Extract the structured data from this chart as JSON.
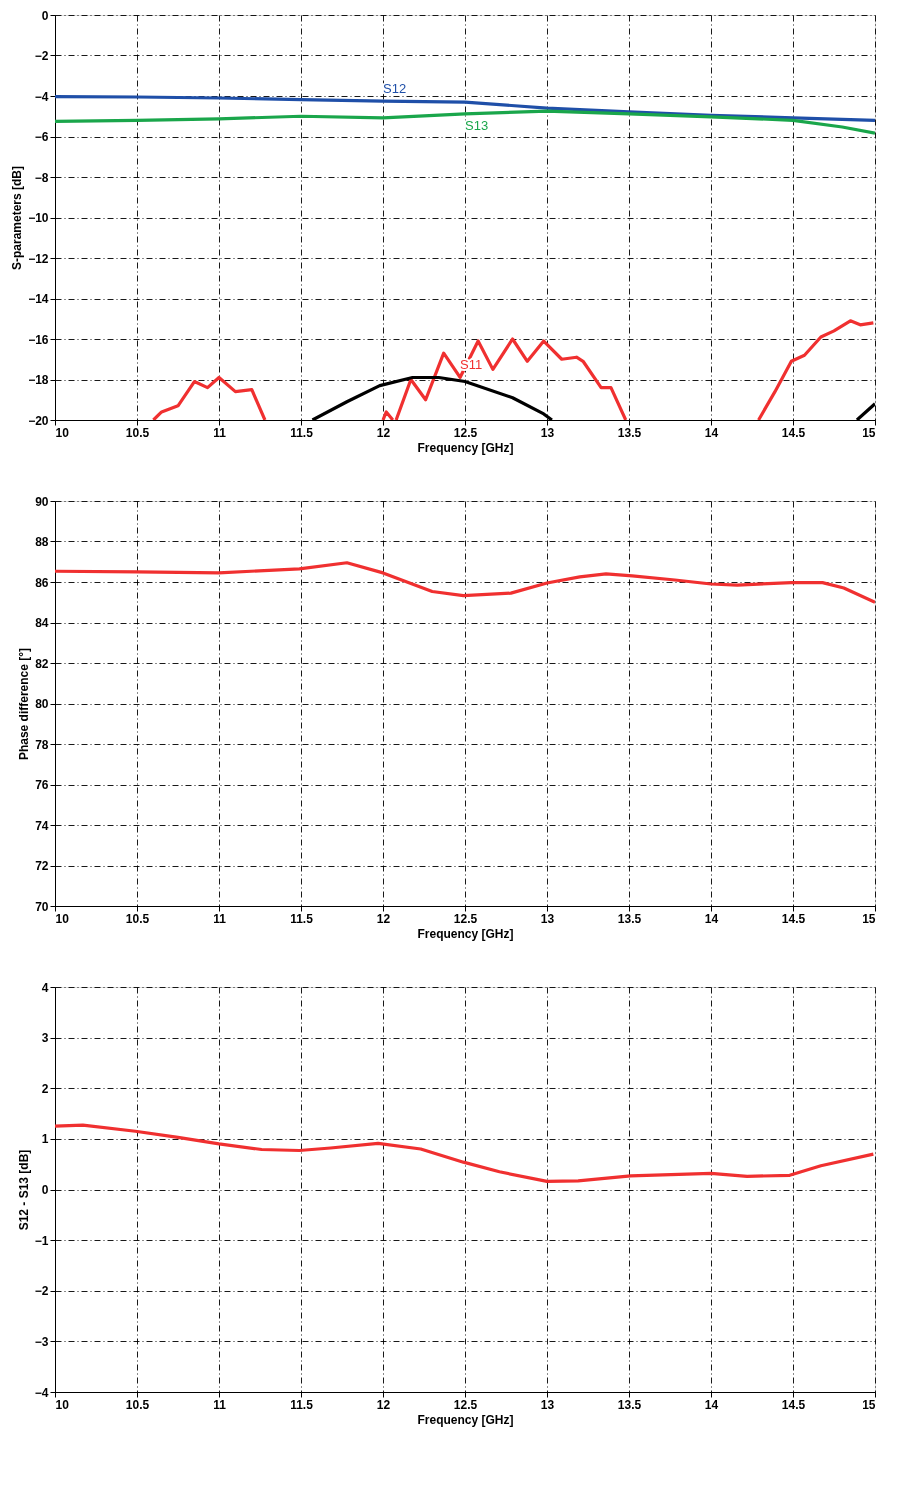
{
  "chart_data": [
    {
      "type": "line",
      "xlabel": "Frequency [GHz]",
      "ylabel": "S-parameters [dB]",
      "xlim": [
        10,
        15
      ],
      "ylim": [
        -20,
        0
      ],
      "xticks": [
        10,
        10.5,
        11,
        11.5,
        12,
        12.5,
        13,
        13.5,
        14,
        14.5,
        15
      ],
      "yticks": [
        -20,
        -18,
        -16,
        -14,
        -12,
        -10,
        -8,
        -6,
        -4,
        -2,
        0
      ],
      "grid": true,
      "legend": false,
      "marker": "none",
      "line_style": "solid",
      "series": [
        {
          "name": "S12",
          "color": "#1f4fa8",
          "x": [
            10,
            10.5,
            11,
            11.5,
            12,
            12.5,
            13,
            13.5,
            14,
            14.5,
            15
          ],
          "values": [
            -4.03,
            -4.05,
            -4.1,
            -4.18,
            -4.25,
            -4.3,
            -4.6,
            -4.78,
            -4.95,
            -5.08,
            -5.2
          ]
        },
        {
          "name": "S13",
          "color": "#1aa64b",
          "x": [
            10,
            10.5,
            11,
            11.5,
            12,
            12.5,
            13,
            13.5,
            14,
            14.5,
            14.8,
            15
          ],
          "values": [
            -5.25,
            -5.2,
            -5.13,
            -5.0,
            -5.08,
            -4.88,
            -4.75,
            -4.88,
            -5.03,
            -5.2,
            -5.53,
            -5.83
          ]
        },
        {
          "name": "S11",
          "color": "#f03030",
          "x": [
            10.6,
            10.65,
            10.75,
            10.85,
            10.93,
            11.0,
            11.1,
            11.2,
            11.28,
            11.5,
            12.0,
            12.02,
            12.06,
            12.07,
            12.08,
            12.17,
            12.26,
            12.37,
            12.47,
            12.58,
            12.67,
            12.79,
            12.88,
            12.98,
            13.09,
            13.18,
            13.22,
            13.33,
            13.39,
            13.48,
            14.0,
            14.29,
            14.39,
            14.49,
            14.57,
            14.67,
            14.75,
            14.85,
            14.91,
            14.99
          ],
          "values": [
            -20,
            -19.6,
            -19.3,
            -18.1,
            -18.4,
            -17.9,
            -18.6,
            -18.5,
            -20,
            null,
            -20,
            -19.6,
            -20,
            null,
            -20,
            -18.0,
            -19.0,
            -16.7,
            -17.9,
            -16.1,
            -17.5,
            -16.0,
            -17.1,
            -16.1,
            -17.0,
            -16.9,
            -17.1,
            -18.4,
            -18.4,
            -20,
            null,
            -20,
            -18.6,
            -17.1,
            -16.8,
            -15.9,
            -15.6,
            -15.1,
            -15.3,
            -15.2
          ]
        },
        {
          "color": "#000000",
          "x": [
            11.57,
            11.78,
            11.98,
            12.18,
            12.34,
            12.5,
            12.79,
            12.98,
            13.03,
            14.0,
            14.89,
            15.0
          ],
          "values": [
            -20,
            -19.1,
            -18.3,
            -17.9,
            -17.9,
            -18.1,
            -18.9,
            -19.7,
            -20,
            null,
            -20,
            -19.2
          ]
        }
      ]
    },
    {
      "type": "line",
      "xlabel": "Frequency [GHz]",
      "ylabel": "Phase difference [°]",
      "xlim": [
        10,
        15
      ],
      "ylim": [
        70,
        90
      ],
      "xticks": [
        10,
        10.5,
        11,
        11.5,
        12,
        12.5,
        13,
        13.5,
        14,
        14.5,
        15
      ],
      "yticks": [
        70,
        72,
        74,
        76,
        78,
        80,
        82,
        84,
        86,
        88,
        90
      ],
      "grid": true,
      "legend": false,
      "marker": "none",
      "line_style": "solid",
      "series": [
        {
          "color": "#f03030",
          "x": [
            10,
            10.5,
            11,
            11.49,
            11.78,
            12.0,
            12.3,
            12.49,
            12.78,
            13.0,
            13.2,
            13.36,
            13.52,
            13.78,
            14.0,
            14.16,
            14.49,
            14.68,
            14.81,
            15.0
          ],
          "values": [
            86.53,
            86.5,
            86.45,
            86.65,
            86.95,
            86.45,
            85.53,
            85.33,
            85.45,
            85.95,
            86.25,
            86.4,
            86.3,
            86.1,
            85.9,
            85.85,
            85.97,
            85.97,
            85.7,
            85.0
          ]
        }
      ]
    },
    {
      "type": "line",
      "xlabel": "Frequency [GHz]",
      "ylabel": "S12 - S13 [dB]",
      "xlim": [
        10,
        15
      ],
      "ylim": [
        -4,
        4
      ],
      "xticks": [
        10,
        10.5,
        11,
        11.5,
        12,
        12.5,
        13,
        13.5,
        14,
        14.5,
        15
      ],
      "yticks": [
        -4,
        -3,
        -2,
        -1,
        0,
        1,
        2,
        3,
        4
      ],
      "grid": true,
      "legend": false,
      "marker": "none",
      "line_style": "solid",
      "series": [
        {
          "color": "#f03030",
          "x": [
            10,
            10.17,
            10.49,
            10.75,
            11.0,
            11.26,
            11.49,
            11.68,
            11.97,
            12.23,
            12.49,
            12.71,
            13.0,
            13.19,
            13.51,
            14.0,
            14.22,
            14.48,
            14.67,
            14.99
          ],
          "values": [
            1.25,
            1.27,
            1.15,
            1.03,
            0.9,
            0.79,
            0.77,
            0.82,
            0.91,
            0.8,
            0.54,
            0.35,
            0.16,
            0.17,
            0.27,
            0.32,
            0.26,
            0.28,
            0.47,
            0.7
          ]
        }
      ]
    }
  ]
}
